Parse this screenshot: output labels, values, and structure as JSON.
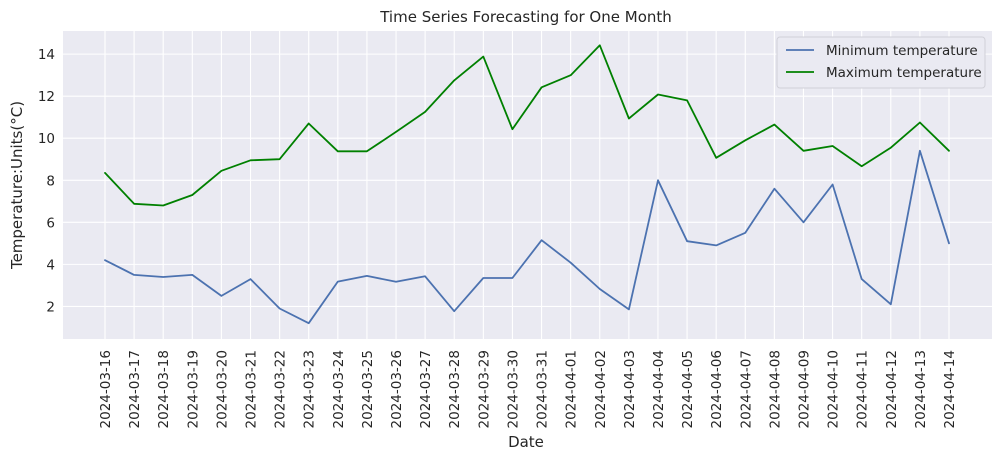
{
  "chart_data": {
    "type": "line",
    "title": "Time Series Forecasting for One Month",
    "xlabel": "Date",
    "ylabel": "Temperature:Units(°C)",
    "x": [
      "2024-03-16",
      "2024-03-17",
      "2024-03-18",
      "2024-03-19",
      "2024-03-20",
      "2024-03-21",
      "2024-03-22",
      "2024-03-23",
      "2024-03-24",
      "2024-03-25",
      "2024-03-26",
      "2024-03-27",
      "2024-03-28",
      "2024-03-29",
      "2024-03-30",
      "2024-03-31",
      "2024-04-01",
      "2024-04-02",
      "2024-04-03",
      "2024-04-04",
      "2024-04-05",
      "2024-04-06",
      "2024-04-07",
      "2024-04-08",
      "2024-04-09",
      "2024-04-10",
      "2024-04-11",
      "2024-04-12",
      "2024-04-13",
      "2024-04-14"
    ],
    "series": [
      {
        "name": "Minimum temperature",
        "color": "#4c72b0",
        "values": [
          4.2,
          3.5,
          3.4,
          3.5,
          2.5,
          3.3,
          1.9,
          1.2,
          3.18,
          3.45,
          3.17,
          3.43,
          1.77,
          3.35,
          3.35,
          5.15,
          4.08,
          2.83,
          1.86,
          8.0,
          5.1,
          4.9,
          5.5,
          7.6,
          6.0,
          7.8,
          3.3,
          2.1,
          9.4,
          5.0
        ]
      },
      {
        "name": "Maximum temperature",
        "color": "#008000",
        "values": [
          8.35,
          6.88,
          6.8,
          7.3,
          8.45,
          8.95,
          9.0,
          10.7,
          9.38,
          9.38,
          10.3,
          11.25,
          12.75,
          13.88,
          10.43,
          12.42,
          13.0,
          14.42,
          10.94,
          12.08,
          11.8,
          9.07,
          9.9,
          10.65,
          9.4,
          9.63,
          8.67,
          9.55,
          10.75,
          9.4
        ]
      }
    ],
    "ylim": [
      0.45,
      15.1
    ],
    "yticks": [
      2,
      4,
      6,
      8,
      10,
      12,
      14
    ],
    "grid": true,
    "legend_position": "top-right"
  }
}
